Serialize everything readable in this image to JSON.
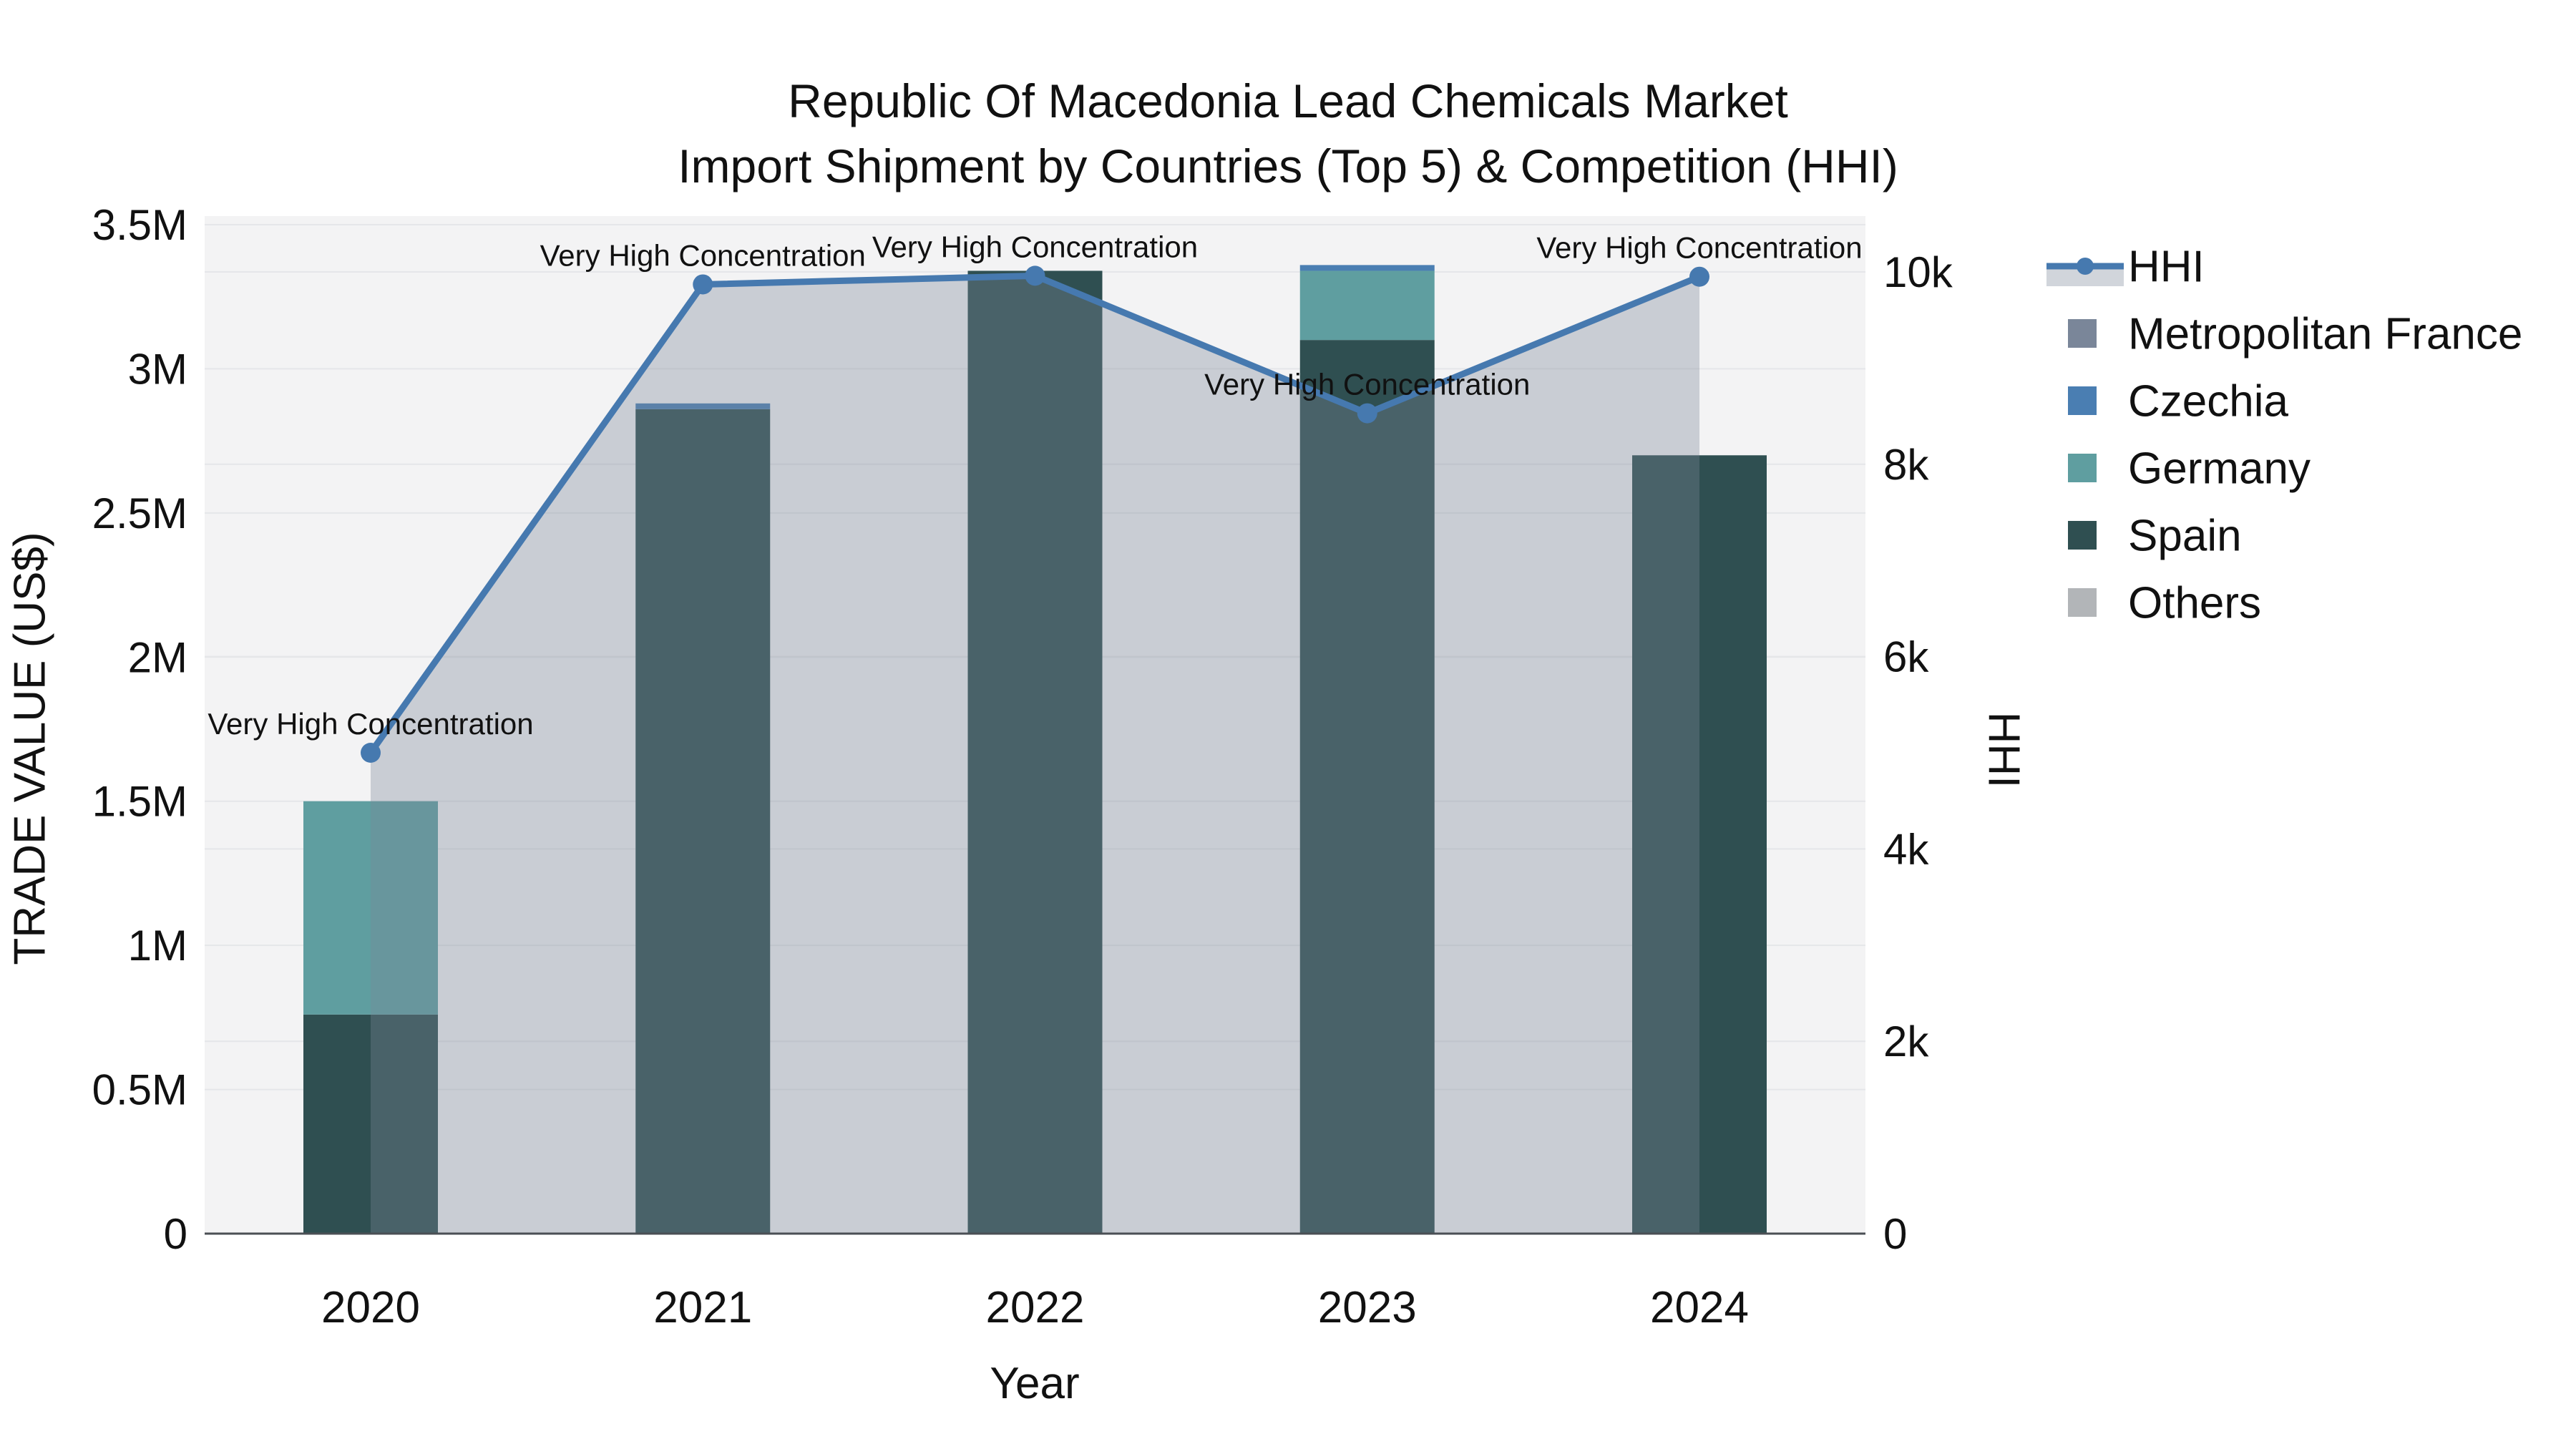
{
  "chart_data": {
    "type": "bar+line",
    "title_line1": "Republic Of Macedonia Lead Chemicals Market",
    "title_line2": "Import Shipment by Countries (Top 5) & Competition (HHI)",
    "xlabel": "Year",
    "ylabel_left": "TRADE VALUE (US$)",
    "ylabel_right": "HHI",
    "categories": [
      "2020",
      "2021",
      "2022",
      "2023",
      "2024"
    ],
    "bar_series": [
      {
        "name": "Spain",
        "color": "#2F4F51",
        "values": [
          760000,
          2860000,
          3340000,
          3100000,
          2700000
        ]
      },
      {
        "name": "Germany",
        "color": "#5F9EA0",
        "values": [
          740000,
          0,
          0,
          240000,
          0
        ]
      },
      {
        "name": "Czechia",
        "color": "#4A7EB2",
        "values": [
          0,
          20000,
          0,
          20000,
          0
        ]
      },
      {
        "name": "Metropolitan France",
        "color": "#7A8699",
        "values": [
          0,
          0,
          0,
          0,
          0
        ]
      },
      {
        "name": "Others",
        "color": "#B2B5B8",
        "values": [
          0,
          0,
          0,
          0,
          0
        ]
      }
    ],
    "line_series": {
      "name": "HHI",
      "color": "#4679AF",
      "area_fill": "rgba(122,134,153,0.35)",
      "values": [
        5000,
        9870,
        9960,
        8530,
        9950
      ]
    },
    "annotations": [
      {
        "x": "2020",
        "text": "Very High Concentration"
      },
      {
        "x": "2021",
        "text": "Very High Concentration"
      },
      {
        "x": "2022",
        "text": "Very High Concentration"
      },
      {
        "x": "2023",
        "text": "Very High Concentration"
      },
      {
        "x": "2024",
        "text": "Very High Concentration"
      }
    ],
    "y_left_axis": {
      "range": [
        0,
        3500000
      ],
      "ticks": [
        {
          "value": 0,
          "label": "0"
        },
        {
          "value": 500000,
          "label": "0.5M"
        },
        {
          "value": 1000000,
          "label": "1M"
        },
        {
          "value": 1500000,
          "label": "1.5M"
        },
        {
          "value": 2000000,
          "label": "2M"
        },
        {
          "value": 2500000,
          "label": "2.5M"
        },
        {
          "value": 3000000,
          "label": "3M"
        },
        {
          "value": 3500000,
          "label": "3.5M"
        }
      ]
    },
    "y_right_axis": {
      "range": [
        0,
        10000
      ],
      "ticks": [
        {
          "value": 0,
          "label": "0"
        },
        {
          "value": 2000,
          "label": "2k"
        },
        {
          "value": 4000,
          "label": "4k"
        },
        {
          "value": 6000,
          "label": "6k"
        },
        {
          "value": 8000,
          "label": "8k"
        },
        {
          "value": 10000,
          "label": "10k"
        }
      ]
    },
    "legend": [
      {
        "name": "HHI",
        "type": "line",
        "color": "#4679AF"
      },
      {
        "name": "Metropolitan France",
        "type": "square",
        "color": "#7A8699"
      },
      {
        "name": "Czechia",
        "type": "square",
        "color": "#4A7EB2"
      },
      {
        "name": "Germany",
        "type": "square",
        "color": "#5F9EA0"
      },
      {
        "name": "Spain",
        "type": "square",
        "color": "#2F4F51"
      },
      {
        "name": "Others",
        "type": "square",
        "color": "#B2B5B8"
      }
    ],
    "style": {
      "plot_bg": "#F3F3F4",
      "grid_color": "#E5E6E9",
      "axis_line_color": "#4A4F54",
      "text_color": "#111111"
    }
  }
}
